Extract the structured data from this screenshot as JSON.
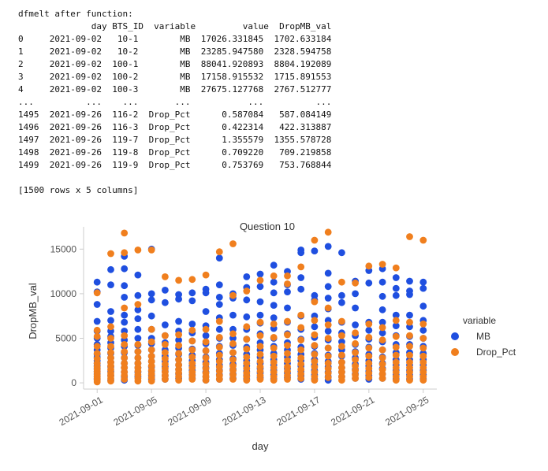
{
  "output": {
    "header": "dfmelt after function:",
    "columns_line": "              day BTS_ID  variable         value  DropMB_val",
    "rows": [
      "0     2021-09-02   10-1        MB  17026.331845  1702.633184",
      "1     2021-09-02   10-2        MB  23285.947580  2328.594758",
      "2     2021-09-02  100-1        MB  88041.920893  8804.192089",
      "3     2021-09-02  100-2        MB  17158.915532  1715.891553",
      "4     2021-09-02  100-3        MB  27675.127768  2767.512777",
      "...          ...    ...       ...           ...          ...",
      "1495  2021-09-26  116-2  Drop_Pct      0.587084   587.084149",
      "1496  2021-09-26  116-3  Drop_Pct      0.422314   422.313887",
      "1497  2021-09-26  119-7  Drop_Pct      1.355579  1355.578728",
      "1498  2021-09-26  119-8  Drop_Pct      0.709220   709.219858",
      "1499  2021-09-26  119-9  Drop_Pct      0.753769   753.768844"
    ],
    "footer": "[1500 rows x 5 columns]"
  },
  "chart_data": {
    "type": "scatter",
    "title": "Question 10",
    "xlabel": "day",
    "ylabel": "DropMB_val",
    "x_ticks": [
      "2021-09-01",
      "2021-09-05",
      "2021-09-09",
      "2021-09-13",
      "2021-09-17",
      "2021-09-21",
      "2021-09-25"
    ],
    "y_ticks": [
      0,
      5000,
      10000,
      15000
    ],
    "xlim": [
      "2021-08-31",
      "2021-09-26"
    ],
    "ylim": [
      -700,
      17500
    ],
    "grid": false,
    "legend": {
      "title": "variable",
      "position": "right"
    },
    "series": [
      {
        "name": "MB",
        "color": "#1f4fe0",
        "points": [
          {
            "x": "2021-09-01",
            "y": [
              11300,
              10200,
              8800,
              6900,
              5800,
              5000,
              4300,
              3700,
              3200,
              2900,
              2500,
              2200,
              1900,
              1600,
              1300,
              1000,
              700,
              400
            ]
          },
          {
            "x": "2021-09-02",
            "y": [
              12700,
              11000,
              8000,
              7000,
              5800,
              5200,
              4500,
              3900,
              3300,
              2800,
              2300,
              1800,
              1300,
              800,
              300
            ]
          },
          {
            "x": "2021-09-03",
            "y": [
              14200,
              12800,
              10900,
              9600,
              7600,
              6800,
              5800,
              4800,
              4100,
              3400,
              2800,
              2200,
              1700,
              1200,
              700,
              300
            ]
          },
          {
            "x": "2021-09-04",
            "y": [
              12100,
              9800,
              8200,
              7200,
              6000,
              5000,
              4200,
              3500,
              2800,
              2200,
              1700,
              1200,
              700
            ]
          },
          {
            "x": "2021-09-05",
            "y": [
              15000,
              10000,
              9300,
              7500,
              6000,
              5000,
              4400,
              3700,
              3000,
              2400,
              1800,
              1300,
              800,
              400
            ]
          },
          {
            "x": "2021-09-06",
            "y": [
              10400,
              9000,
              6500,
              5300,
              4500,
              3700,
              3000,
              2400,
              1800,
              1300,
              800,
              400
            ]
          },
          {
            "x": "2021-09-07",
            "y": [
              9900,
              9400,
              6900,
              5800,
              4800,
              3900,
              3200,
              2600,
              2000,
              1500,
              1000,
              500
            ]
          },
          {
            "x": "2021-09-08",
            "y": [
              10100,
              9200,
              6600,
              5600,
              4700,
              3800,
              3100,
              2500,
              1900,
              1400,
              900,
              500
            ]
          },
          {
            "x": "2021-09-09",
            "y": [
              10500,
              10100,
              8000,
              6400,
              5300,
              4400,
              3600,
              2900,
              2300,
              1700,
              1200,
              700,
              300
            ]
          },
          {
            "x": "2021-09-10",
            "y": [
              14000,
              11000,
              9600,
              8800,
              7300,
              6000,
              5000,
              4100,
              3300,
              2600,
              2000,
              1400,
              900,
              400
            ]
          },
          {
            "x": "2021-09-11",
            "y": [
              10000,
              9500,
              7600,
              6000,
              5000,
              4200,
              3400,
              2700,
              2100,
              1500,
              1000,
              500
            ]
          },
          {
            "x": "2021-09-12",
            "y": [
              11900,
              10700,
              9300,
              7400,
              6000,
              4900,
              4000,
              3200,
              2500,
              1900,
              1300,
              800,
              400
            ]
          },
          {
            "x": "2021-09-13",
            "y": [
              12200,
              10800,
              9100,
              7600,
              6700,
              5500,
              4500,
              3700,
              2900,
              2200,
              1600,
              1100,
              600
            ]
          },
          {
            "x": "2021-09-14",
            "y": [
              13200,
              11300,
              10100,
              8700,
              7300,
              6100,
              5000,
              4100,
              3300,
              2600,
              2000,
              1400,
              900,
              400
            ]
          },
          {
            "x": "2021-09-15",
            "y": [
              12500,
              11000,
              10200,
              8400,
              6800,
              5500,
              4500,
              3700,
              2900,
              2200,
              1600,
              1100,
              600
            ]
          },
          {
            "x": "2021-09-16",
            "y": [
              14900,
              14600,
              11800,
              10500,
              7500,
              6000,
              4900,
              4000,
              3200,
              2500,
              1900,
              1300,
              800,
              400
            ]
          },
          {
            "x": "2021-09-17",
            "y": [
              14800,
              9800,
              9300,
              7500,
              6300,
              5100,
              4100,
              3300,
              2600,
              2000,
              1400,
              900,
              400
            ]
          },
          {
            "x": "2021-09-18",
            "y": [
              15300,
              12300,
              10800,
              9500,
              8300,
              7000,
              5800,
              4800,
              3900,
              3100,
              2400,
              1800,
              1200,
              700,
              300
            ]
          },
          {
            "x": "2021-09-19",
            "y": [
              14600,
              9800,
              9000,
              6800,
              5600,
              4600,
              3700,
              3000,
              2300,
              1700,
              1200,
              700
            ]
          },
          {
            "x": "2021-09-20",
            "y": [
              11400,
              10000,
              8400,
              6500,
              5300,
              4300,
              3500,
              2800,
              2100,
              1500,
              1000,
              500
            ]
          },
          {
            "x": "2021-09-21",
            "y": [
              12600,
              11200,
              6800,
              5900,
              4900,
              4000,
              3200,
              2500,
              1900,
              1300,
              800,
              400
            ]
          },
          {
            "x": "2021-09-22",
            "y": [
              12800,
              11300,
              9700,
              8200,
              6800,
              5600,
              4600,
              3700,
              2900,
              2200,
              1600,
              1000,
              500
            ]
          },
          {
            "x": "2021-09-23",
            "y": [
              11800,
              10600,
              9800,
              7600,
              6400,
              5300,
              4300,
              3400,
              2600,
              2000,
              1400,
              900,
              400
            ]
          },
          {
            "x": "2021-09-24",
            "y": [
              11400,
              10300,
              9900,
              7600,
              6300,
              5200,
              4300,
              3400,
              2600,
              2000,
              1400,
              900,
              400
            ]
          },
          {
            "x": "2021-09-25",
            "y": [
              11300,
              10600,
              8600,
              7000,
              5900,
              5000,
              4100,
              3300,
              2600,
              2000,
              1400,
              900,
              400
            ]
          }
        ]
      },
      {
        "name": "Drop_Pct",
        "color": "#f07f1e",
        "points": [
          {
            "x": "2021-09-01",
            "y": [
              10100,
              5900,
              5200,
              4100,
              3300,
              2700,
              2200,
              1800,
              1500,
              1200,
              900,
              700,
              500,
              300,
              100
            ]
          },
          {
            "x": "2021-09-02",
            "y": [
              14500,
              6300,
              5000,
              4100,
              3400,
              2800,
              2300,
              1900,
              1500,
              1100,
              800,
              500,
              200
            ]
          },
          {
            "x": "2021-09-03",
            "y": [
              16800,
              14600,
              8400,
              5300,
              4300,
              3500,
              2800,
              2200,
              1700,
              1200,
              800,
              400
            ]
          },
          {
            "x": "2021-09-04",
            "y": [
              14900,
              8800,
              4300,
              3500,
              2800,
              2200,
              1700,
              1300,
              900,
              500,
              200
            ]
          },
          {
            "x": "2021-09-05",
            "y": [
              14900,
              6000,
              4600,
              3700,
              3000,
              2400,
              1900,
              1400,
              1000,
              600,
              200
            ]
          },
          {
            "x": "2021-09-06",
            "y": [
              11900,
              5300,
              4300,
              3400,
              2700,
              2100,
              1600,
              1200,
              800,
              400
            ]
          },
          {
            "x": "2021-09-07",
            "y": [
              11500,
              5400,
              4200,
              3300,
              2600,
              2000,
              1500,
              1100,
              700,
              300
            ]
          },
          {
            "x": "2021-09-08",
            "y": [
              11600,
              5900,
              4700,
              3700,
              2900,
              2200,
              1700,
              1200,
              800,
              400
            ]
          },
          {
            "x": "2021-09-09",
            "y": [
              12100,
              6000,
              4600,
              3600,
              2800,
              2100,
              1600,
              1100,
              700,
              300
            ]
          },
          {
            "x": "2021-09-10",
            "y": [
              14700,
              6900,
              5100,
              4000,
              3100,
              2400,
              1800,
              1300,
              800,
              400
            ]
          },
          {
            "x": "2021-09-11",
            "y": [
              15600,
              9800,
              5500,
              4400,
              3400,
              2600,
              1900,
              1400,
              900,
              400
            ]
          },
          {
            "x": "2021-09-12",
            "y": [
              10300,
              6300,
              4900,
              3800,
              2900,
              2200,
              1600,
              1100,
              700,
              300
            ]
          },
          {
            "x": "2021-09-13",
            "y": [
              11500,
              6800,
              5300,
              4100,
              3200,
              2400,
              1800,
              1300,
              800,
              400
            ]
          },
          {
            "x": "2021-09-14",
            "y": [
              12000,
              6600,
              5100,
              3900,
              3000,
              2300,
              1700,
              1200,
              700,
              300
            ]
          },
          {
            "x": "2021-09-15",
            "y": [
              12000,
              11100,
              6900,
              5400,
              4200,
              3300,
              2500,
              1800,
              1300,
              800,
              400
            ]
          },
          {
            "x": "2021-09-16",
            "y": [
              13000,
              7600,
              6200,
              4800,
              3700,
              2800,
              2100,
              1500,
              1000,
              500
            ]
          },
          {
            "x": "2021-09-17",
            "y": [
              16000,
              9100,
              7000,
              5400,
              4200,
              3200,
              2400,
              1800,
              1200,
              700,
              300
            ]
          },
          {
            "x": "2021-09-18",
            "y": [
              16900,
              8400,
              6500,
              5000,
              3900,
              3000,
              2200,
              1600,
              1100,
              600
            ]
          },
          {
            "x": "2021-09-19",
            "y": [
              11300,
              6900,
              5300,
              4100,
              3100,
              2300,
              1700,
              1200,
              700,
              300
            ]
          },
          {
            "x": "2021-09-20",
            "y": [
              11200,
              5600,
              4400,
              3400,
              2600,
              1900,
              1400,
              900,
              500
            ]
          },
          {
            "x": "2021-09-21",
            "y": [
              13100,
              6600,
              5100,
              3900,
              3000,
              2200,
              1600,
              1100,
              600
            ]
          },
          {
            "x": "2021-09-22",
            "y": [
              13300,
              6200,
              4800,
              3700,
              2800,
              2100,
              1500,
              1000,
              500
            ]
          },
          {
            "x": "2021-09-23",
            "y": [
              12900,
              7000,
              5200,
              4000,
              3100,
              2300,
              1700,
              1200,
              700,
              300
            ]
          },
          {
            "x": "2021-09-24",
            "y": [
              16400,
              6800,
              5300,
              4100,
              3100,
              2300,
              1700,
              1200,
              700,
              300
            ]
          },
          {
            "x": "2021-09-25",
            "y": [
              16000,
              6600,
              5000,
              3900,
              3000,
              2300,
              1700,
              1200,
              700,
              300
            ]
          }
        ]
      }
    ]
  }
}
